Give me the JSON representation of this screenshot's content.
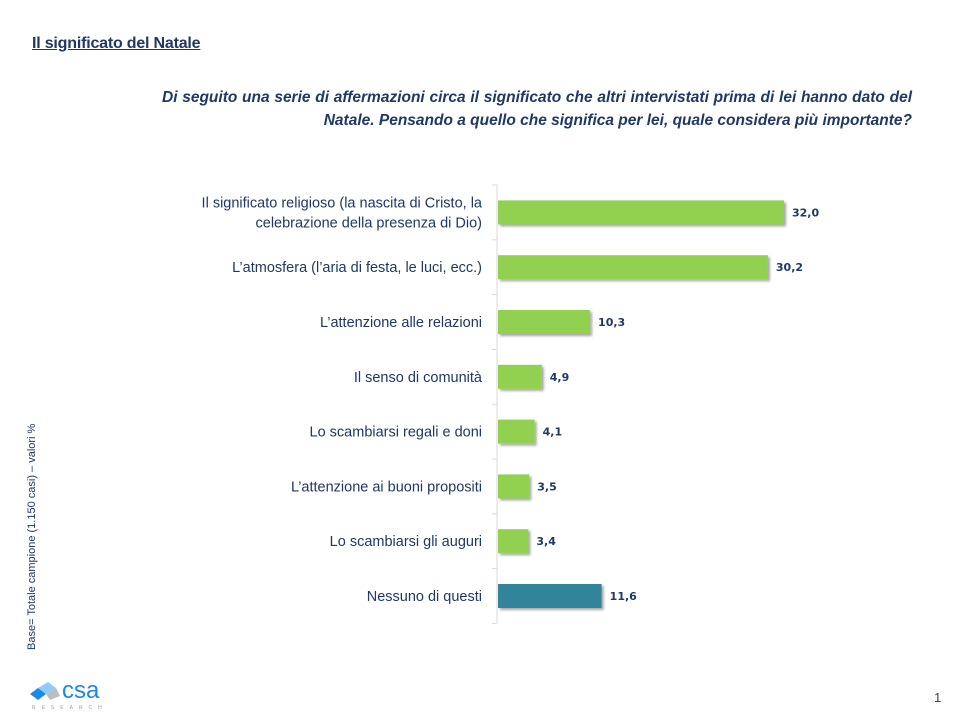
{
  "header": {
    "title": "Il significato del Natale",
    "question": "Di seguito una serie di affermazioni circa il significato che altri intervistati prima di lei hanno dato del Natale. Pensando a quello che significa per lei, quale considera più importante?"
  },
  "base_note": "Base= Totale campione (1.150 casi) – valori %",
  "logo": {
    "name": "csa",
    "sub": "RESEARCH"
  },
  "page_number": "1",
  "colors": {
    "green": "#92d050",
    "teal": "#31849b",
    "text": "#1f3864"
  },
  "chart_data": {
    "type": "bar",
    "orientation": "horizontal",
    "title": "",
    "xlabel": "",
    "ylabel": "",
    "xlim": [
      0,
      35
    ],
    "grid": false,
    "categories": [
      [
        "Il significato religioso (la nascita di Cristo, la",
        "celebrazione della presenza di Dio)"
      ],
      [
        "L’atmosfera (l’aria di festa, le luci, ecc.)"
      ],
      [
        "L’attenzione alle relazioni"
      ],
      [
        "Il senso di comunità"
      ],
      [
        "Lo scambiarsi regali e doni"
      ],
      [
        "L’attenzione ai buoni propositi"
      ],
      [
        "Lo scambiarsi gli auguri"
      ],
      [
        "Nessuno di questi"
      ]
    ],
    "values": [
      32.0,
      30.2,
      10.3,
      4.9,
      4.1,
      3.5,
      3.4,
      11.6
    ],
    "value_labels": [
      "32,0",
      "30,2",
      "10,3",
      "4,9",
      "4,1",
      "3,5",
      "3,4",
      "11,6"
    ],
    "bar_colors": [
      "#92d050",
      "#92d050",
      "#92d050",
      "#92d050",
      "#92d050",
      "#92d050",
      "#92d050",
      "#31849b"
    ]
  }
}
